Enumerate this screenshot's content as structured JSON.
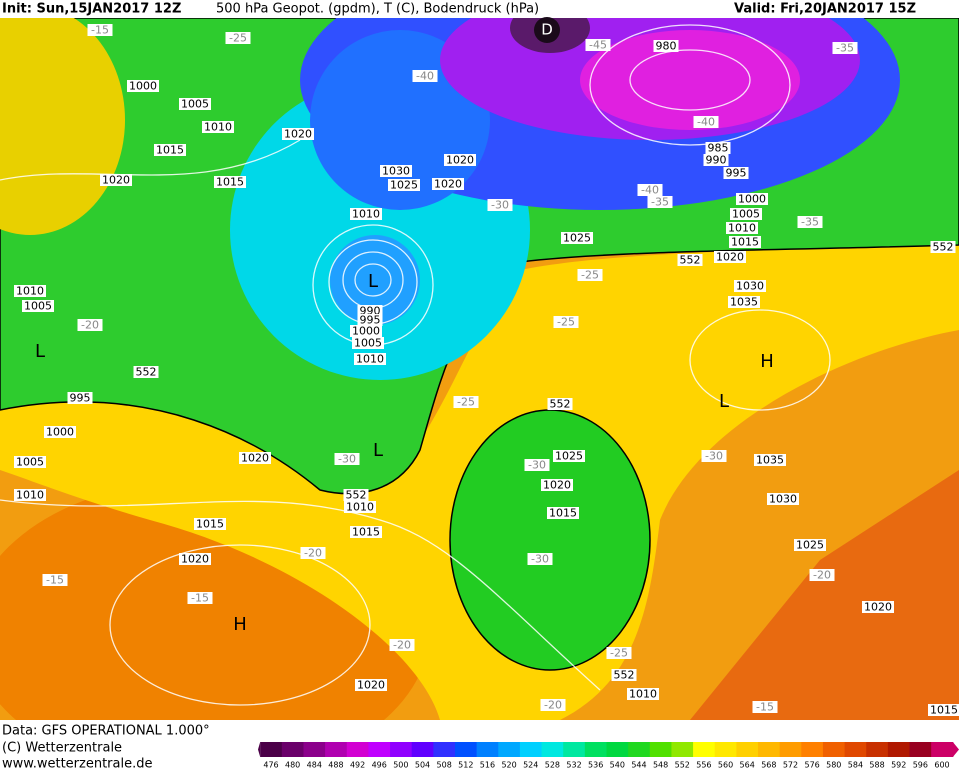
{
  "header": {
    "init": "Init: Sun,15JAN2017 12Z",
    "field": "500 hPa Geopot. (gpdm), T (C), Bodendruck (hPa)",
    "valid": "Valid: Fri,20JAN2017 15Z"
  },
  "footer": {
    "data": "Data: GFS OPERATIONAL 1.000°",
    "copyright": "(C) Wetterzentrale",
    "url": "www.wetterzentrale.de"
  },
  "legend": {
    "ticks": [
      476,
      480,
      484,
      488,
      492,
      496,
      500,
      504,
      508,
      512,
      516,
      520,
      524,
      528,
      532,
      536,
      540,
      544,
      548,
      552,
      556,
      560,
      564,
      568,
      572,
      576,
      580,
      584,
      588,
      592,
      596,
      600
    ],
    "colors": [
      "#4b0048",
      "#6a006a",
      "#8b008b",
      "#b000b0",
      "#d200d2",
      "#c000ff",
      "#9000ff",
      "#6000ff",
      "#3030ff",
      "#0050ff",
      "#0080ff",
      "#00a8ff",
      "#00d0ff",
      "#00e8e0",
      "#00e8a0",
      "#00e060",
      "#00d840",
      "#20d820",
      "#50e000",
      "#90e800",
      "#ffff00",
      "#ffe800",
      "#ffd000",
      "#ffb800",
      "#ff9c00",
      "#ff8000",
      "#f06000",
      "#e04800",
      "#c83000",
      "#b01800",
      "#980020",
      "#cc0066"
    ]
  },
  "map": {
    "labels": [
      "-15",
      "-25",
      "1000",
      "1005",
      "1010",
      "1015",
      "1020",
      "1015",
      "1020",
      "-40",
      "1030",
      "1025",
      "1020",
      "1020",
      "1010",
      "-30",
      "L",
      "990",
      "995",
      "1000",
      "1005",
      "1010",
      "D",
      "-45",
      "980",
      "-40",
      "985",
      "990",
      "995",
      "-35",
      "1000",
      "1005",
      "1010",
      "1015",
      "1020",
      "-35",
      "552",
      "1025",
      "-40",
      "-35",
      "552",
      "-25",
      "1030",
      "1035",
      "-25",
      "H",
      "L",
      "1010",
      "1005",
      "-20",
      "L",
      "552",
      "995",
      "1000",
      "1005",
      "1010",
      "1020",
      "-30",
      "L",
      "552",
      "1010",
      "1015",
      "-25",
      "552",
      "1025",
      "-30",
      "1020",
      "1015",
      "-30",
      "1035",
      "1030",
      "-30",
      "1025",
      "-20",
      "1020",
      "1015",
      "-20",
      "1020",
      "-15",
      "-15",
      "H",
      "-20",
      "-25",
      "552",
      "1010",
      "1020",
      "-20",
      "-15",
      "1015"
    ]
  }
}
